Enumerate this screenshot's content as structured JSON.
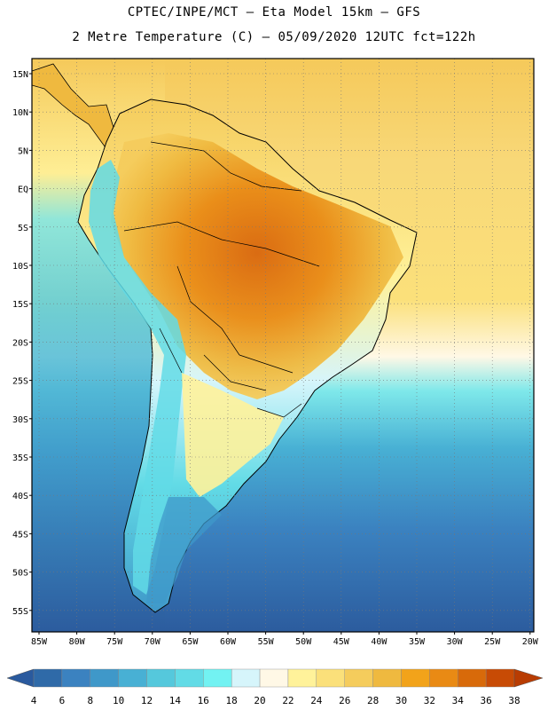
{
  "header": {
    "line1": "CPTEC/INPE/MCT –  Eta Model 15km – GFS",
    "line2": "2 Metre Temperature (C) – 05/09/2020 12UTC fct=122h"
  },
  "axes": {
    "lat_labels": [
      "15N",
      "10N",
      "5N",
      "EQ",
      "5S",
      "10S",
      "15S",
      "20S",
      "25S",
      "30S",
      "35S",
      "40S",
      "45S",
      "50S",
      "55S"
    ],
    "lon_labels": [
      "85W",
      "80W",
      "75W",
      "70W",
      "65W",
      "60W",
      "55W",
      "50W",
      "45W",
      "40W",
      "35W",
      "30W",
      "25W",
      "20W"
    ]
  },
  "colorbar": {
    "labels": [
      "4",
      "6",
      "8",
      "10",
      "12",
      "14",
      "16",
      "18",
      "20",
      "22",
      "24",
      "26",
      "28",
      "30",
      "32",
      "34",
      "36",
      "38"
    ],
    "colors": [
      "#2f6aa8",
      "#3b82c0",
      "#3f98c9",
      "#48b0d4",
      "#55c8dc",
      "#62dbe6",
      "#72f2f2",
      "#d6f5fb",
      "#fff8e6",
      "#fff29a",
      "#fbe07a",
      "#f5cc5c",
      "#efb93f",
      "#f2a31a",
      "#e98a14",
      "#d86a0a",
      "#c84b05"
    ],
    "left_end_color": "#2a5a9e",
    "right_end_color": "#b83c02"
  },
  "map_colors": {
    "ocean_cold": "#2c5c9e",
    "ocean_mid": "#3aa6cc",
    "ocean_warm": "#7ee8ea",
    "ocean_tropical": "#f8d878",
    "land_hot": "#d86a12",
    "land_warm": "#efb93f",
    "andes": "#6fe0e6"
  }
}
